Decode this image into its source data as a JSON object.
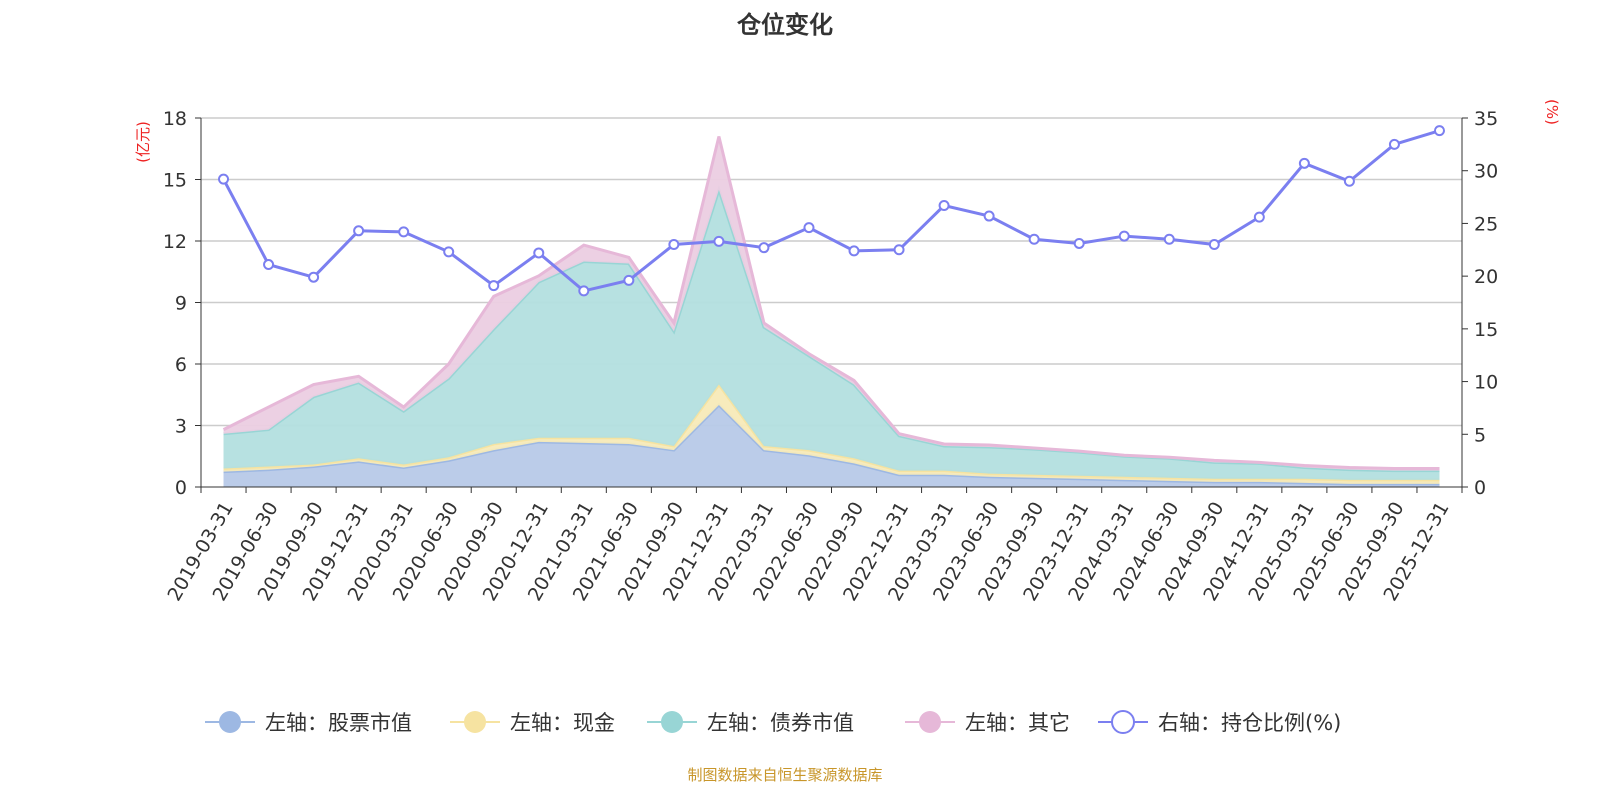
{
  "chart_data": {
    "type": "area",
    "title": "仓位变化",
    "ylabel_left": "(亿元)",
    "ylabel_right": "(%)",
    "ylim_left": [
      0,
      18
    ],
    "yticks_left": [
      0,
      3,
      6,
      9,
      12,
      15,
      18
    ],
    "ylim_right": [
      0,
      35
    ],
    "yticks_right": [
      0,
      5,
      10,
      15,
      20,
      25,
      30,
      35
    ],
    "grid": true,
    "legend_position": "bottom",
    "categories": [
      "2019-03-31",
      "2019-06-30",
      "2019-09-30",
      "2019-12-31",
      "2020-03-31",
      "2020-06-30",
      "2020-09-30",
      "2020-12-31",
      "2021-03-31",
      "2021-06-30",
      "2021-09-30",
      "2021-12-31",
      "2022-03-31",
      "2022-06-30",
      "2022-09-30",
      "2022-12-31",
      "2023-03-31",
      "2023-06-30",
      "2023-09-30",
      "2023-12-31",
      "2024-03-31",
      "2024-06-30",
      "2024-09-30",
      "2024-12-31",
      "2025-03-31",
      "2025-06-30",
      "2025-09-30",
      "2025-12-31"
    ],
    "series": [
      {
        "name": "左轴：股票市值",
        "axis": "left",
        "stacked": true,
        "color": "#9db8e3",
        "fill": "#b7c9e8",
        "values": [
          0.75,
          0.85,
          1.0,
          1.25,
          0.95,
          1.3,
          1.8,
          2.2,
          2.15,
          2.1,
          1.8,
          4.0,
          1.8,
          1.55,
          1.15,
          0.6,
          0.6,
          0.5,
          0.45,
          0.4,
          0.35,
          0.3,
          0.25,
          0.25,
          0.2,
          0.15,
          0.15,
          0.15
        ]
      },
      {
        "name": "左轴：现金",
        "axis": "left",
        "stacked": true,
        "color": "#f6e3a1",
        "fill": "#f7eab8",
        "values": [
          0.15,
          0.15,
          0.1,
          0.15,
          0.15,
          0.15,
          0.3,
          0.2,
          0.25,
          0.3,
          0.2,
          1.0,
          0.2,
          0.25,
          0.25,
          0.2,
          0.2,
          0.15,
          0.15,
          0.15,
          0.15,
          0.15,
          0.15,
          0.15,
          0.2,
          0.2,
          0.2,
          0.2
        ]
      },
      {
        "name": "左轴：债券市值",
        "axis": "left",
        "stacked": true,
        "color": "#98d5d5",
        "fill": "#b3dfdf",
        "values": [
          1.7,
          1.8,
          3.3,
          3.7,
          2.6,
          3.85,
          5.6,
          7.6,
          8.6,
          8.5,
          5.6,
          9.5,
          5.8,
          4.6,
          3.6,
          1.7,
          1.2,
          1.3,
          1.25,
          1.15,
          1.0,
          0.95,
          0.8,
          0.75,
          0.55,
          0.5,
          0.45,
          0.45
        ]
      },
      {
        "name": "左轴：其它",
        "axis": "left",
        "stacked": true,
        "color": "#e6b8d8",
        "fill": "#ebcde2",
        "values": [
          0.2,
          1.1,
          0.6,
          0.3,
          0.2,
          0.7,
          1.6,
          0.3,
          0.8,
          0.3,
          0.4,
          2.6,
          0.2,
          0.1,
          0.2,
          0.1,
          0.1,
          0.1,
          0.05,
          0.05,
          0.05,
          0.05,
          0.1,
          0.05,
          0.1,
          0.1,
          0.1,
          0.1
        ]
      },
      {
        "name": "右轴：持仓比例(%)",
        "axis": "right",
        "type": "line",
        "color": "#7b7ff0",
        "values": [
          29.2,
          21.1,
          19.9,
          24.3,
          24.2,
          22.3,
          19.1,
          22.2,
          18.6,
          19.6,
          23.0,
          23.3,
          22.7,
          24.6,
          22.4,
          22.5,
          26.7,
          25.7,
          23.5,
          23.1,
          23.8,
          23.5,
          23.0,
          25.6,
          30.7,
          29.0,
          32.5,
          33.8
        ]
      }
    ]
  },
  "footer": "制图数据来自恒生聚源数据库",
  "colors": {
    "axis_label": "#ee2222",
    "footer": "#c8962a"
  }
}
